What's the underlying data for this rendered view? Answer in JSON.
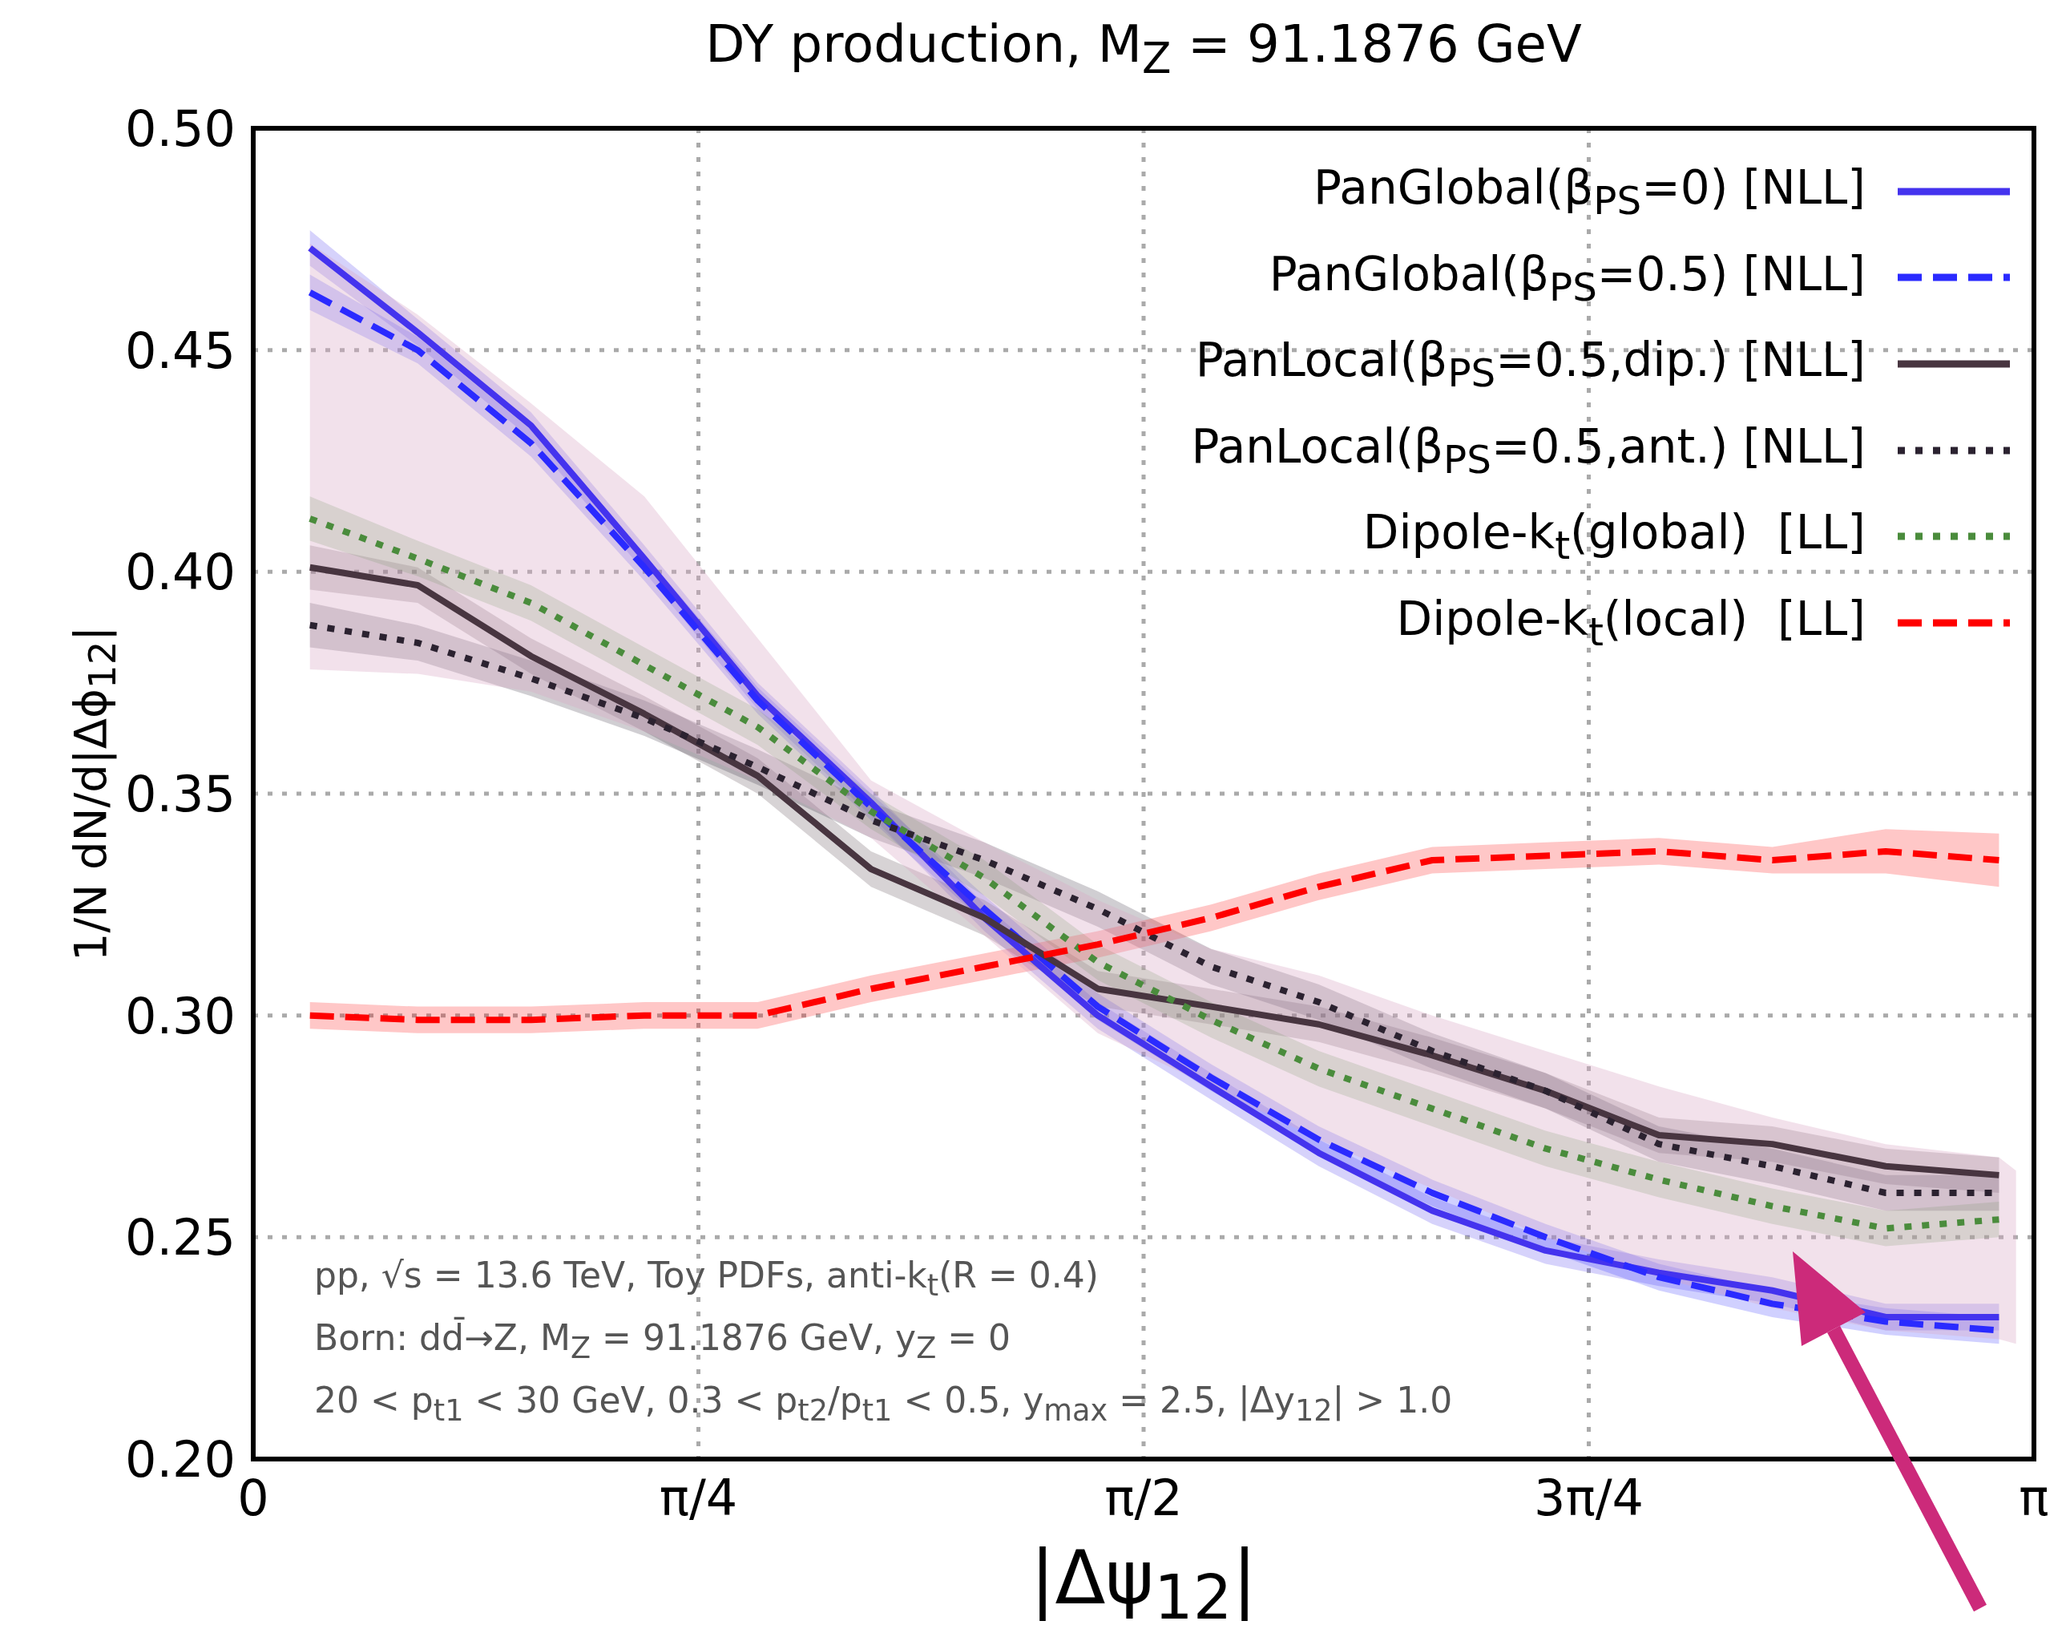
{
  "chart_data": {
    "type": "line",
    "title": "DY production, M$_{Z}$ = 91.1876 GeV",
    "xlabel": "|Δψ$_{12}$|",
    "ylabel": "1/N dN/d|Δϕ$_{12}$|",
    "x": [
      0.1,
      0.29,
      0.49,
      0.69,
      0.89,
      1.09,
      1.29,
      1.49,
      1.69,
      1.88,
      2.08,
      2.28,
      2.48,
      2.68,
      2.88,
      3.08
    ],
    "series": [
      {
        "name": "PanGlobal(β$_{PS}$=0) [NLL]",
        "color": "#4433ee",
        "line_style": "solid",
        "values": [
          0.473,
          0.454,
          0.433,
          0.403,
          0.372,
          0.348,
          0.322,
          0.3,
          0.284,
          0.269,
          0.256,
          0.247,
          0.242,
          0.238,
          0.232,
          0.232
        ],
        "lower": [
          0.469,
          0.451,
          0.43,
          0.4,
          0.369,
          0.345,
          0.319,
          0.297,
          0.281,
          0.266,
          0.253,
          0.244,
          0.239,
          0.235,
          0.229,
          0.229
        ],
        "upper": [
          0.477,
          0.457,
          0.436,
          0.406,
          0.375,
          0.351,
          0.325,
          0.303,
          0.287,
          0.272,
          0.259,
          0.25,
          0.245,
          0.241,
          0.235,
          0.235
        ]
      },
      {
        "name": "PanGlobal(β$_{PS}$=0.5) [NLL]",
        "color": "#2a2aff",
        "line_style": "dashed",
        "values": [
          0.463,
          0.45,
          0.429,
          0.401,
          0.371,
          0.347,
          0.324,
          0.302,
          0.286,
          0.272,
          0.26,
          0.25,
          0.241,
          0.235,
          0.231,
          0.229
        ],
        "lower": [
          0.459,
          0.447,
          0.426,
          0.398,
          0.368,
          0.344,
          0.321,
          0.299,
          0.283,
          0.269,
          0.257,
          0.247,
          0.238,
          0.232,
          0.228,
          0.226
        ],
        "upper": [
          0.467,
          0.453,
          0.432,
          0.404,
          0.374,
          0.35,
          0.327,
          0.305,
          0.289,
          0.275,
          0.263,
          0.253,
          0.244,
          0.238,
          0.234,
          0.232
        ]
      },
      {
        "name": "PanLocal(β$_{PS}$=0.5,dip.) [NLL]",
        "color": "#483540",
        "line_style": "solid",
        "values": [
          0.401,
          0.397,
          0.381,
          0.368,
          0.354,
          0.333,
          0.322,
          0.306,
          0.302,
          0.298,
          0.291,
          0.283,
          0.273,
          0.271,
          0.266,
          0.264
        ],
        "lower": [
          0.396,
          0.393,
          0.377,
          0.364,
          0.35,
          0.329,
          0.318,
          0.302,
          0.298,
          0.294,
          0.287,
          0.279,
          0.269,
          0.267,
          0.262,
          0.26
        ],
        "upper": [
          0.406,
          0.401,
          0.385,
          0.372,
          0.358,
          0.337,
          0.326,
          0.31,
          0.306,
          0.302,
          0.295,
          0.287,
          0.277,
          0.275,
          0.27,
          0.268
        ]
      },
      {
        "name": "PanLocal(β$_{PS}$=0.5,ant.) [NLL]",
        "color": "#2b2230",
        "line_style": "dotted",
        "values": [
          0.388,
          0.384,
          0.376,
          0.367,
          0.356,
          0.344,
          0.335,
          0.324,
          0.311,
          0.303,
          0.292,
          0.283,
          0.271,
          0.266,
          0.26,
          0.26
        ],
        "lower": [
          0.383,
          0.38,
          0.372,
          0.363,
          0.352,
          0.34,
          0.331,
          0.32,
          0.307,
          0.299,
          0.288,
          0.279,
          0.267,
          0.262,
          0.256,
          0.256
        ],
        "upper": [
          0.393,
          0.388,
          0.38,
          0.371,
          0.36,
          0.348,
          0.339,
          0.328,
          0.315,
          0.307,
          0.296,
          0.287,
          0.275,
          0.27,
          0.264,
          0.264
        ]
      },
      {
        "name": "Dipole-k$_{t}$(global)  [LL]",
        "color": "#4a8c3c",
        "line_style": "dotted",
        "values": [
          0.412,
          0.403,
          0.393,
          0.379,
          0.365,
          0.346,
          0.331,
          0.312,
          0.299,
          0.288,
          0.279,
          0.27,
          0.263,
          0.257,
          0.252,
          0.254
        ],
        "lower": [
          0.407,
          0.399,
          0.389,
          0.375,
          0.361,
          0.342,
          0.327,
          0.308,
          0.295,
          0.284,
          0.275,
          0.266,
          0.259,
          0.253,
          0.248,
          0.25
        ],
        "upper": [
          0.417,
          0.407,
          0.397,
          0.383,
          0.369,
          0.35,
          0.335,
          0.316,
          0.303,
          0.292,
          0.283,
          0.274,
          0.267,
          0.261,
          0.256,
          0.258
        ]
      },
      {
        "name": "Dipole-k$_{t}$(local)  [LL]",
        "color": "#ff0000",
        "line_style": "dashed",
        "values": [
          0.3,
          0.299,
          0.299,
          0.3,
          0.3,
          0.306,
          0.311,
          0.316,
          0.322,
          0.329,
          0.335,
          0.336,
          0.337,
          0.335,
          0.337,
          0.335
        ],
        "lower": [
          0.297,
          0.296,
          0.296,
          0.297,
          0.297,
          0.303,
          0.308,
          0.313,
          0.319,
          0.326,
          0.332,
          0.333,
          0.334,
          0.332,
          0.332,
          0.329
        ],
        "upper": [
          0.303,
          0.302,
          0.302,
          0.303,
          0.303,
          0.309,
          0.314,
          0.319,
          0.325,
          0.332,
          0.338,
          0.339,
          0.34,
          0.338,
          0.342,
          0.341
        ]
      },
      {
        "type": "area",
        "color": "#d9a9c7",
        "values": [
          null,
          null,
          null,
          null,
          null,
          null,
          null,
          null,
          null,
          null,
          null,
          null,
          null,
          null,
          null,
          null,
          null
        ],
        "x": [
          0.1,
          0.29,
          0.49,
          0.69,
          0.89,
          1.09,
          1.29,
          1.49,
          1.69,
          1.88,
          2.08,
          2.28,
          2.48,
          2.68,
          2.88,
          3.08,
          3.11
        ],
        "lower": [
          0.378,
          0.377,
          0.373,
          0.364,
          0.353,
          0.34,
          0.318,
          0.296,
          0.284,
          0.272,
          0.261,
          0.25,
          0.241,
          0.234,
          0.229,
          0.227,
          0.226
        ],
        "upper": [
          0.474,
          0.458,
          0.438,
          0.417,
          0.385,
          0.353,
          0.339,
          0.326,
          0.315,
          0.309,
          0.3,
          0.292,
          0.284,
          0.277,
          0.271,
          0.268,
          0.265
        ]
      }
    ],
    "xlim": [
      0,
      3.1416
    ],
    "xticks": [
      0,
      {
        "value": 0.7854,
        "label": "π/4"
      },
      {
        "value": 1.5708,
        "label": "π/2"
      },
      {
        "value": 2.3562,
        "label": "3π/4"
      },
      {
        "value": 3.1416,
        "label": "π"
      }
    ],
    "ylim": [
      0.2,
      0.5
    ],
    "yticks": [
      {
        "value": 0.2,
        "label": "0.20"
      },
      {
        "value": 0.25,
        "label": "0.25"
      },
      {
        "value": 0.3,
        "label": "0.30"
      },
      {
        "value": 0.35,
        "label": "0.35"
      },
      {
        "value": 0.4,
        "label": "0.40"
      },
      {
        "value": 0.45,
        "label": "0.45"
      },
      {
        "value": 0.5,
        "label": "0.50"
      }
    ],
    "grid": true,
    "legend": "top right",
    "marker": "none",
    "annotations": [
      "pp, √s = 13.6 TeV, Toy PDFs, anti-k$_{t}$(R = 0.4)",
      "Born: dd̄→Z, M$_{Z}$ = 91.1876 GeV, y$_{Z}$ = 0",
      "20 < p$_{t1}$ < 30 GeV, 0.3 < p$_{t2}$/p$_{t1}$ < 0.5, y$_{max}$ = 2.5, |Δy$_{12}$| > 1.0"
    ]
  }
}
